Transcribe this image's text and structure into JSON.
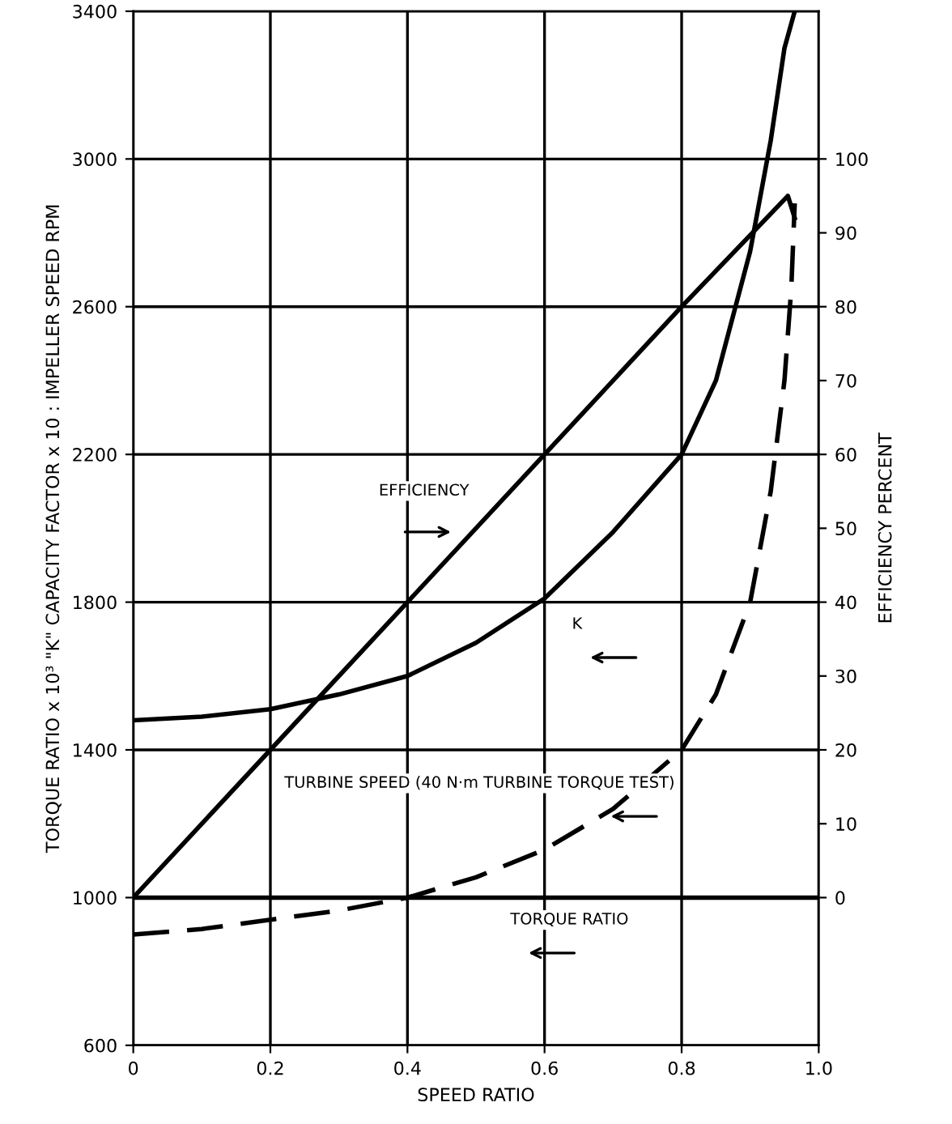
{
  "chart_data": {
    "type": "line",
    "xlabel": "SPEED RATIO",
    "ylabel": "TORQUE RATIO x 10³ \"K\" CAPACITY FACTOR x 10 : IMPELLER SPEED RPM",
    "y2label": "EFFICIENCY PERCENT",
    "xlim": [
      0,
      1.0
    ],
    "xticks": [
      0,
      0.2,
      0.4,
      0.6,
      0.8,
      {
        "value": 1.0,
        "label": "1.0"
      }
    ],
    "ylim": [
      600,
      3400
    ],
    "yticks": [
      600,
      1000,
      1400,
      1800,
      2200,
      2600,
      3000,
      3400
    ],
    "y2lim": [
      -20,
      120
    ],
    "y2ticks": [
      0,
      10,
      20,
      30,
      40,
      50,
      60,
      70,
      80,
      90,
      100
    ],
    "grid": true,
    "marker": "none",
    "series": [
      {
        "name": "EFFICIENCY",
        "color": "#000000",
        "axis": "y2",
        "line_style": "solid",
        "x": [
          0,
          0.2,
          0.4,
          0.6,
          0.8,
          0.955,
          0.965
        ],
        "values": [
          0,
          20,
          40,
          60,
          80,
          95,
          92
        ]
      },
      {
        "name": "K",
        "color": "#000000",
        "line_style": "solid",
        "x": [
          0,
          0.1,
          0.2,
          0.3,
          0.4,
          0.5,
          0.6,
          0.7,
          0.8,
          0.85,
          0.9,
          0.93,
          0.95,
          0.965
        ],
        "values": [
          1480,
          1490,
          1510,
          1550,
          1600,
          1690,
          1810,
          1990,
          2200,
          2400,
          2750,
          3050,
          3300,
          3400
        ]
      },
      {
        "name": "TURBINE SPEED (40 N·m TURBINE TORQUE TEST)",
        "color": "#000000",
        "line_style": "dashed",
        "x": [
          0,
          0.1,
          0.2,
          0.3,
          0.4,
          0.5,
          0.6,
          0.7,
          0.8,
          0.85,
          0.9,
          0.93,
          0.95,
          0.96,
          0.965
        ],
        "values": [
          900,
          915,
          940,
          965,
          1000,
          1055,
          1130,
          1240,
          1400,
          1550,
          1800,
          2100,
          2400,
          2650,
          2880
        ]
      },
      {
        "name": "TORQUE RATIO",
        "color": "#000000",
        "line_style": "solid",
        "x": [
          0,
          1.0
        ],
        "values": [
          1000,
          1000
        ]
      }
    ]
  }
}
